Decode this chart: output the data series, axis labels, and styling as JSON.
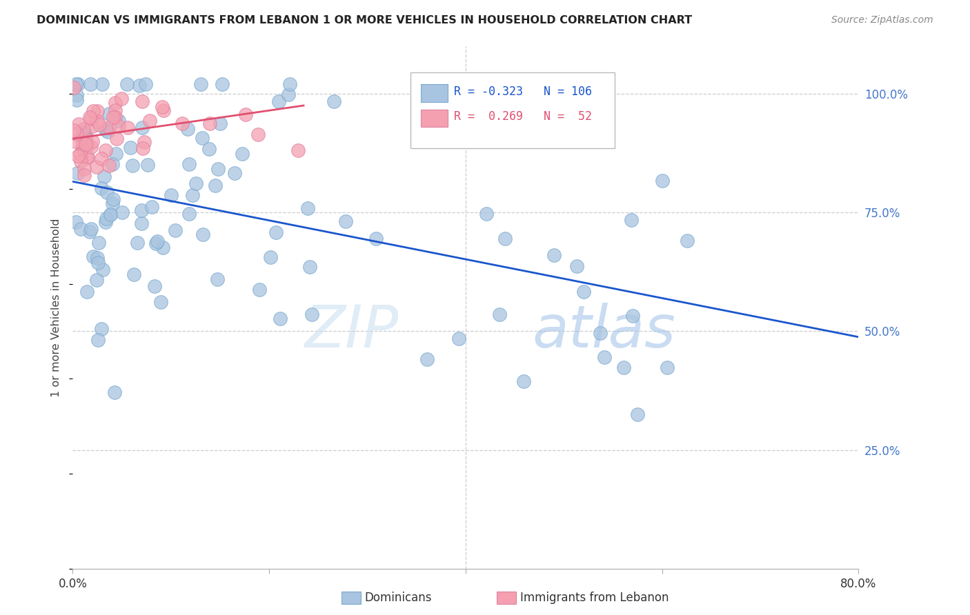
{
  "title": "DOMINICAN VS IMMIGRANTS FROM LEBANON 1 OR MORE VEHICLES IN HOUSEHOLD CORRELATION CHART",
  "source": "Source: ZipAtlas.com",
  "ylabel": "1 or more Vehicles in Household",
  "right_yticks": [
    "100.0%",
    "75.0%",
    "50.0%",
    "25.0%"
  ],
  "right_ytick_vals": [
    1.0,
    0.75,
    0.5,
    0.25
  ],
  "legend_blue_r": "-0.323",
  "legend_blue_n": "106",
  "legend_pink_r": "0.269",
  "legend_pink_n": "52",
  "watermark_zip": "ZIP",
  "watermark_atlas": "atlas",
  "blue_color": "#a8c4e0",
  "pink_color": "#f4a0b0",
  "line_blue": "#1a56cc",
  "line_pink": "#e05070",
  "blue_scatter_edge": "#7aaad0",
  "pink_scatter_edge": "#e080a0",
  "legend_box_edge": "#bbbbbb",
  "grid_color": "#cccccc",
  "bottom_spine_color": "#aaaaaa",
  "title_color": "#222222",
  "source_color": "#888888",
  "ylabel_color": "#444444",
  "right_tick_color": "#4477cc",
  "xtick_color": "#333333",
  "xlim": [
    0.0,
    0.8
  ],
  "ylim": [
    0.0,
    1.1
  ],
  "blue_trend_x0": 0.0,
  "blue_trend_y0": 0.815,
  "blue_trend_x1": 0.8,
  "blue_trend_y1": 0.488,
  "pink_trend_x0": 0.0,
  "pink_trend_y0": 0.905,
  "pink_trend_x1": 0.235,
  "pink_trend_y1": 0.975
}
